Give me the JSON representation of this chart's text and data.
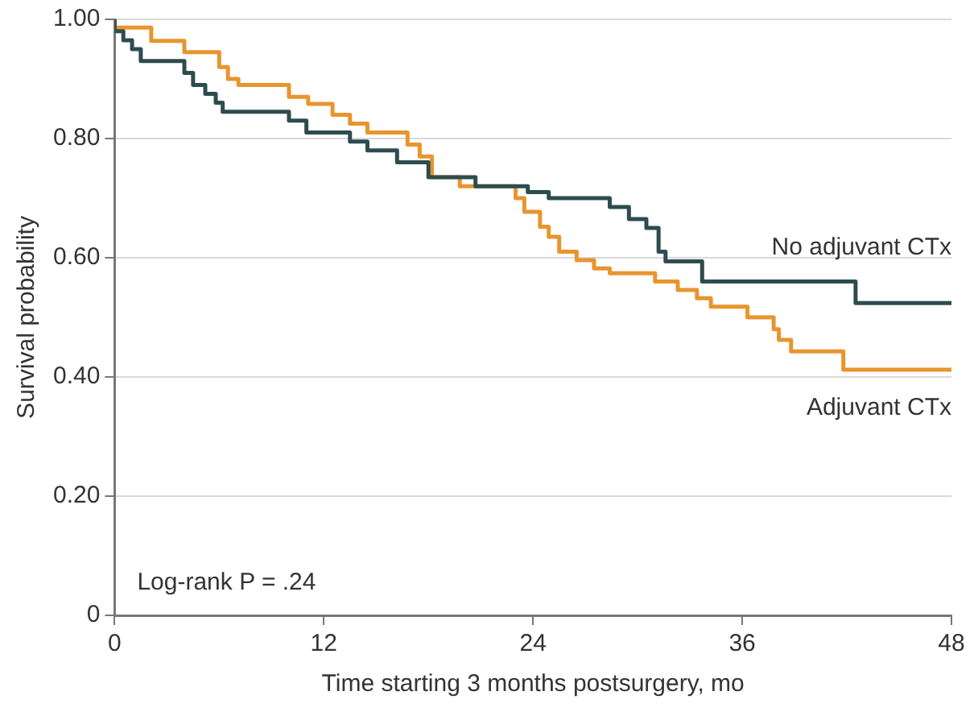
{
  "chart_data": {
    "type": "step",
    "xlabel": "Time starting 3 months postsurgery, mo",
    "ylabel": "Survival probability",
    "xlim": [
      0,
      48
    ],
    "xticks": [
      0,
      12,
      24,
      36,
      48
    ],
    "ylim": [
      0,
      1
    ],
    "yticks": [
      {
        "value": 0,
        "label": "0"
      },
      {
        "value": 0.2,
        "label": "0.20"
      },
      {
        "value": 0.4,
        "label": "0.40"
      },
      {
        "value": 0.6,
        "label": "0.60"
      },
      {
        "value": 0.8,
        "label": "0.80"
      },
      {
        "value": 1,
        "label": "1.00"
      }
    ],
    "grid": "y",
    "legend": false,
    "annotations": [
      "Log-rank P = .24"
    ],
    "series": [
      {
        "name": "No adjuvant CTx",
        "color": "#2e4c4f",
        "x": [
          0,
          0.5,
          1,
          1.5,
          4,
          4.5,
          5.2,
          5.8,
          6.2,
          10,
          11,
          13.5,
          14.5,
          16.2,
          18,
          20.7,
          23.7,
          24.9,
          28.4,
          29.5,
          30.5,
          31.2,
          31.6,
          33.7,
          42.5,
          46.9,
          48
        ],
        "values": [
          1.0,
          0.98,
          0.965,
          0.95,
          0.93,
          0.91,
          0.89,
          0.875,
          0.86,
          0.845,
          0.83,
          0.81,
          0.795,
          0.78,
          0.76,
          0.735,
          0.72,
          0.71,
          0.7,
          0.685,
          0.665,
          0.65,
          0.61,
          0.594,
          0.56,
          0.524,
          0.524
        ]
      },
      {
        "name": "Adjuvant CTx",
        "color": "#e8952e",
        "x": [
          0,
          2.1,
          4,
          6,
          6.5,
          7.1,
          10,
          11.1,
          12.5,
          13.5,
          14.5,
          16.8,
          17.5,
          18.2,
          19.8,
          23,
          23.5,
          24.4,
          24.9,
          25.5,
          26.5,
          27.5,
          28.4,
          31,
          32.3,
          33.4,
          34.2,
          36.3,
          37.8,
          38.1,
          38.8,
          41.8,
          43.2,
          48
        ],
        "values": [
          1.0,
          0.986,
          0.964,
          0.945,
          0.92,
          0.9,
          0.89,
          0.87,
          0.858,
          0.84,
          0.825,
          0.81,
          0.79,
          0.77,
          0.735,
          0.72,
          0.7,
          0.677,
          0.652,
          0.635,
          0.61,
          0.596,
          0.582,
          0.574,
          0.56,
          0.546,
          0.532,
          0.518,
          0.5,
          0.48,
          0.462,
          0.443,
          0.412,
          0.412
        ]
      }
    ]
  }
}
